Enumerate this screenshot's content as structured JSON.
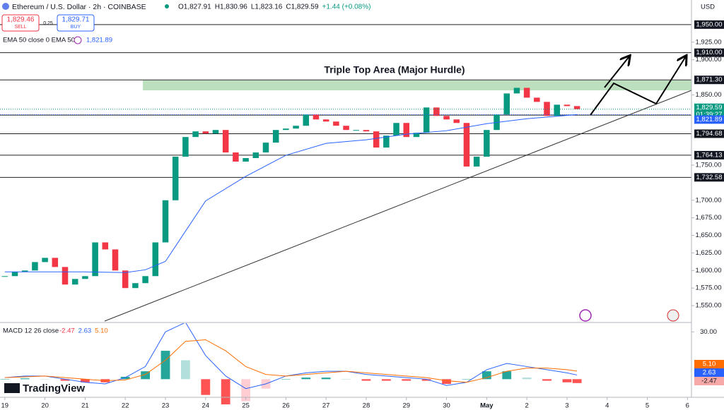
{
  "chart_data": {
    "type": "candlestick",
    "title": "Ethereum / U.S. Dollar · 2h · COINBASE",
    "header_stats": [
      "O1,827.91",
      "H1,830.96",
      "L1,823.16",
      "C1,829.59",
      "+1.44 (+0.08%)"
    ],
    "sell": {
      "price": "1,829.46",
      "label": "SELL"
    },
    "spread": "0.25",
    "buy": {
      "price": "1,829.71",
      "label": "BUY"
    },
    "indicator": {
      "label": "EMA 50 close 0 EMA 50",
      "value": "1,821.89"
    },
    "currency": "USD",
    "annotation": "Triple Top Area (Major Hurdle)",
    "brand": "TradingView",
    "countdown": "01:39:27",
    "xlim": [
      -0.12,
      17.1
    ],
    "xticks": [
      {
        "value": 0,
        "label": "19"
      },
      {
        "value": 1,
        "label": "20"
      },
      {
        "value": 2,
        "label": "21"
      },
      {
        "value": 3,
        "label": "22"
      },
      {
        "value": 4,
        "label": "23"
      },
      {
        "value": 5,
        "label": "24"
      },
      {
        "value": 6,
        "label": "25"
      },
      {
        "value": 7,
        "label": "26"
      },
      {
        "value": 8,
        "label": "27"
      },
      {
        "value": 9,
        "label": "28"
      },
      {
        "value": 10,
        "label": "29"
      },
      {
        "value": 11,
        "label": "30"
      },
      {
        "value": 12,
        "label": "May"
      },
      {
        "value": 13,
        "label": "2"
      },
      {
        "value": 14,
        "label": "3"
      },
      {
        "value": 15,
        "label": "4"
      },
      {
        "value": 16,
        "label": "5"
      },
      {
        "value": 17,
        "label": "6"
      }
    ],
    "ylim": [
      1528,
      1985
    ],
    "yticks": [
      {
        "value": 1550,
        "label": "1,550.00"
      },
      {
        "value": 1575,
        "label": "1,575.00"
      },
      {
        "value": 1600,
        "label": "1,600.00"
      },
      {
        "value": 1625,
        "label": "1,625.00"
      },
      {
        "value": 1650,
        "label": "1,650.00"
      },
      {
        "value": 1675,
        "label": "1,675.00"
      },
      {
        "value": 1700,
        "label": "1,700.00"
      },
      {
        "value": 1750,
        "label": "1,750.00"
      },
      {
        "value": 1850,
        "label": "1,850.00"
      },
      {
        "value": 1900,
        "label": "1,900.00"
      },
      {
        "value": 1925,
        "label": "1,925.00"
      }
    ],
    "grid": false,
    "up_color": "#089981",
    "down_color": "#f23645",
    "series": [
      {
        "x": [
          0,
          0.25,
          0.5,
          0.75,
          1,
          1.25,
          1.5,
          1.75,
          2,
          2.25,
          2.5,
          2.75,
          3,
          3.25,
          3.5,
          3.75,
          4,
          4.25,
          4.5,
          4.75,
          5,
          5.25,
          5.5,
          5.75,
          6,
          6.25,
          6.5,
          6.75,
          7,
          7.25,
          7.5,
          7.75,
          8,
          8.25,
          8.5,
          8.75,
          9,
          9.25,
          9.5,
          9.75,
          10,
          10.25,
          10.5,
          10.75,
          11,
          11.25,
          11.5,
          11.75,
          12,
          12.25,
          12.5,
          12.75,
          13,
          13.25,
          13.5,
          13.75,
          14,
          14.25
        ],
        "values": [
          1592,
          1598,
          1600,
          1612,
          1618,
          1605,
          1580,
          1588,
          1592,
          1640,
          1630,
          1600,
          1575,
          1582,
          1592,
          1640,
          1700,
          1762,
          1790,
          1798,
          1795,
          1800,
          1768,
          1755,
          1760,
          1768,
          1782,
          1800,
          1802,
          1806,
          1822,
          1815,
          1812,
          1806,
          1800,
          1800,
          1798,
          1775,
          1792,
          1810,
          1790,
          1796,
          1832,
          1820,
          1815,
          1810,
          1748,
          1762,
          1800,
          1822,
          1852,
          1860,
          1846,
          1840,
          1820,
          1836,
          1834,
          1829.59
        ]
      }
    ],
    "ema": {
      "color": "#2962ff",
      "x": [
        0,
        1,
        2,
        3,
        3.5,
        4,
        5,
        6,
        7,
        8,
        9,
        10,
        11,
        12,
        13,
        14.25
      ],
      "values": [
        1598,
        1598,
        1598,
        1597,
        1601,
        1613,
        1699,
        1734,
        1764,
        1781,
        1786,
        1794,
        1799,
        1809,
        1816,
        1821.89
      ]
    },
    "levels": [
      {
        "value": 1950,
        "label": "1,950.00"
      },
      {
        "value": 1910,
        "label": "1,910.00"
      },
      {
        "value": 1871.3,
        "label": "1,871.30"
      },
      {
        "value": 1821.22,
        "label": "1,821.22"
      },
      {
        "value": 1794.68,
        "label": "1,794.68"
      },
      {
        "value": 1764.13,
        "label": "1,764.13"
      },
      {
        "value": 1732.58,
        "label": "1,732.58"
      }
    ],
    "price_markers": [
      {
        "value": 1829.59,
        "label": "1,829.59",
        "color": "#089981"
      },
      {
        "value": 1821.89,
        "label": "1,821.89",
        "color": "#2962ff"
      }
    ],
    "macd": {
      "title": "MACD 12 26 close",
      "ylim": [
        -11.5,
        35.5
      ],
      "yticks": [
        {
          "value": 30,
          "label": "30.00"
        }
      ],
      "x": [
        0,
        0.5,
        1,
        1.5,
        2,
        2.5,
        3,
        3.5,
        4,
        4.5,
        5,
        5.5,
        6,
        6.5,
        7,
        7.5,
        8,
        8.5,
        9,
        9.5,
        10,
        10.5,
        11,
        11.5,
        12,
        12.5,
        13,
        13.5,
        14,
        14.25
      ],
      "macd": {
        "color": "#2962ff",
        "values": [
          1,
          2,
          2,
          0,
          -2,
          -3,
          1,
          8,
          30,
          36,
          15,
          2,
          -6,
          -3,
          2,
          4,
          5,
          5,
          3,
          2,
          1,
          0,
          -4,
          -2,
          6,
          10,
          8,
          6,
          4,
          2.63
        ]
      },
      "signal": {
        "color": "#ff6d00",
        "values": [
          1,
          1.5,
          2,
          1,
          0,
          -1,
          -0.5,
          3,
          12,
          24,
          25,
          18,
          8,
          3,
          2,
          3,
          4,
          5,
          4,
          3,
          2,
          1,
          -1,
          -2,
          1,
          5,
          7,
          7,
          6,
          5.1
        ]
      },
      "histogram": {
        "values": [
          0,
          0.5,
          0,
          -1,
          -2,
          -2,
          1.5,
          5,
          18,
          12,
          -10,
          -16,
          -14,
          -6,
          0,
          1,
          1,
          0,
          -1,
          -1,
          -1,
          -1,
          -3,
          0,
          5,
          5,
          1,
          -1,
          -2,
          -2.47
        ]
      },
      "markers": [
        {
          "value": 5.1,
          "label": "5.10",
          "color": "#ff6d00"
        },
        {
          "value": 2.63,
          "label": "2.63",
          "color": "#2962ff"
        },
        {
          "value": -2.47,
          "label": "-2.47",
          "color": "#f7a9a7"
        }
      ]
    }
  }
}
